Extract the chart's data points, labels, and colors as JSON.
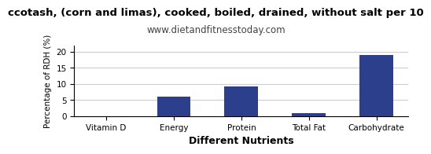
{
  "title": "ccotash, (corn and limas), cooked, boiled, drained, without salt per 10",
  "subtitle": "www.dietandfitnesstoday.com",
  "xlabel": "Different Nutrients",
  "ylabel": "Percentage of RDH (%)",
  "categories": [
    "Vitamin D",
    "Energy",
    "Protein",
    "Total Fat",
    "Carbohydrate"
  ],
  "values": [
    0,
    6.1,
    9.1,
    1.0,
    19.1
  ],
  "bar_color": "#2b3f8c",
  "ylim": [
    0,
    22
  ],
  "yticks": [
    0,
    5,
    10,
    15,
    20
  ],
  "title_fontsize": 9.5,
  "subtitle_fontsize": 8.5,
  "xlabel_fontsize": 9,
  "ylabel_fontsize": 7.5,
  "tick_fontsize": 7.5,
  "background_color": "#ffffff",
  "grid_color": "#cccccc"
}
